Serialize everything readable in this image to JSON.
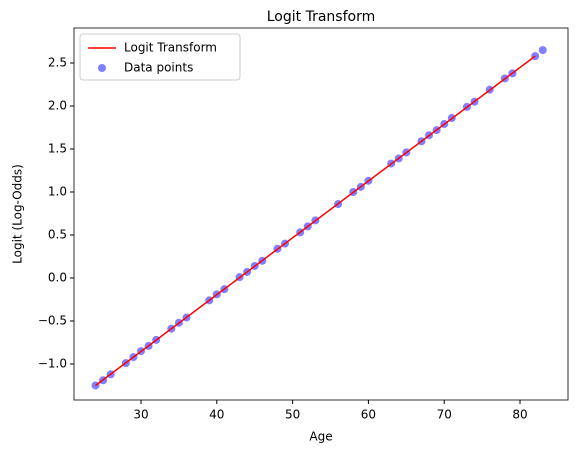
{
  "chart_data": {
    "type": "line_scatter",
    "title": "Logit Transform",
    "x_label": "Age",
    "y_label": "Logit (Log-Odds)",
    "xlim": [
      21.16,
      86.33
    ],
    "ylim": [
      -1.419,
      2.907
    ],
    "xticks": [
      30,
      40,
      50,
      60,
      70,
      80
    ],
    "yticks": [
      {
        "value": -1.0,
        "label": "−1.0"
      },
      {
        "value": -0.5,
        "label": "−0.5"
      },
      {
        "value": 0.0,
        "label": "0.0"
      },
      {
        "value": 0.5,
        "label": "0.5"
      },
      {
        "value": 1.0,
        "label": "1.0"
      },
      {
        "value": 1.5,
        "label": "1.5"
      },
      {
        "value": 2.0,
        "label": "2.0"
      },
      {
        "value": 2.5,
        "label": "2.5"
      }
    ],
    "legend": "upper left",
    "series": [
      {
        "name": "Logit Transform",
        "kind": "line",
        "color": "#ff0000",
        "x": [
          24,
          82
        ],
        "values": [
          -1.25,
          2.58
        ]
      },
      {
        "name": "Data points",
        "kind": "scatter",
        "color": "#0000ff",
        "x": [
          24,
          25,
          26,
          28,
          29,
          30,
          31,
          32,
          34,
          35,
          36,
          39,
          40,
          41,
          43,
          44,
          45,
          46,
          48,
          49,
          51,
          52,
          53,
          56,
          58,
          59,
          60,
          63,
          64,
          65,
          67,
          68,
          69,
          70,
          71,
          73,
          74,
          76,
          78,
          79,
          82,
          83
        ],
        "values": [
          -1.25,
          -1.19,
          -1.12,
          -0.99,
          -0.92,
          -0.85,
          -0.79,
          -0.72,
          -0.59,
          -0.52,
          -0.46,
          -0.26,
          -0.19,
          -0.13,
          0.01,
          0.07,
          0.14,
          0.2,
          0.34,
          0.4,
          0.53,
          0.6,
          0.67,
          0.86,
          1.0,
          1.06,
          1.13,
          1.33,
          1.39,
          1.46,
          1.59,
          1.66,
          1.72,
          1.79,
          1.86,
          1.99,
          2.05,
          2.19,
          2.32,
          2.38,
          2.58,
          2.65
        ]
      }
    ]
  }
}
